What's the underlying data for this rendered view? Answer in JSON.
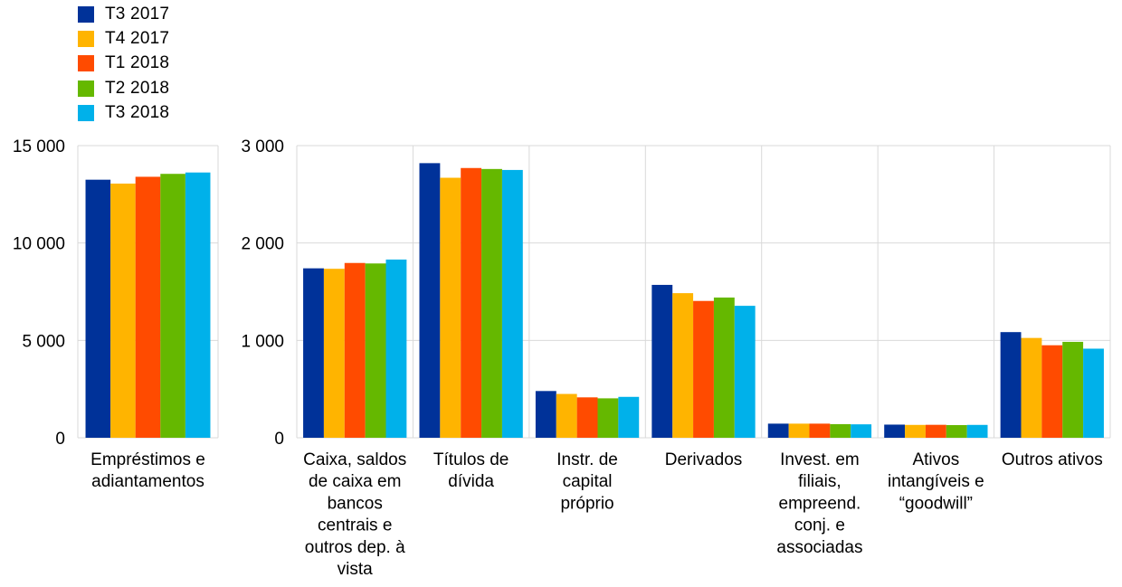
{
  "chart_data": {
    "type": "bar",
    "series": [
      {
        "name": "T3 2017",
        "color": "#003299"
      },
      {
        "name": "T4 2017",
        "color": "#FFB400"
      },
      {
        "name": "T1 2018",
        "color": "#FF4B00"
      },
      {
        "name": "T2 2018",
        "color": "#65B800"
      },
      {
        "name": "T3 2018",
        "color": "#00B1EA"
      }
    ],
    "legend_position": "top-left",
    "grid": true,
    "panels": [
      {
        "ylim": [
          0,
          15000
        ],
        "ticks": [
          0,
          5000,
          10000,
          15000
        ],
        "tick_labels": [
          "0",
          "5 000",
          "10 000",
          "15 000"
        ],
        "categories": [
          {
            "label": [
              "Empréstimos e",
              "adiantamentos"
            ],
            "values": [
              13250,
              13050,
              13400,
              13550,
              13620
            ]
          }
        ]
      },
      {
        "ylim": [
          0,
          3000
        ],
        "ticks": [
          0,
          1000,
          2000,
          3000
        ],
        "tick_labels": [
          "0",
          "1 000",
          "2 000",
          "3 000"
        ],
        "categories": [
          {
            "label": [
              "Caixa, saldos",
              "de caixa em",
              "bancos",
              "centrais e",
              "outros dep. à",
              "vista"
            ],
            "values": [
              1740,
              1735,
              1795,
              1790,
              1830
            ]
          },
          {
            "label": [
              "Títulos de",
              "dívida"
            ],
            "values": [
              2820,
              2670,
              2770,
              2760,
              2750
            ]
          },
          {
            "label": [
              "Instr. de",
              "capital",
              "próprio"
            ],
            "values": [
              480,
              450,
              415,
              405,
              420
            ]
          },
          {
            "label": [
              "Derivados"
            ],
            "values": [
              1570,
              1485,
              1405,
              1440,
              1355
            ]
          },
          {
            "label": [
              "Invest. em",
              "filiais,",
              "empreend.",
              "conj. e",
              "associadas"
            ],
            "values": [
              145,
              145,
              145,
              140,
              138
            ]
          },
          {
            "label": [
              "Ativos",
              "intangíveis e",
              "“goodwill”"
            ],
            "values": [
              135,
              132,
              133,
              130,
              132
            ]
          },
          {
            "label": [
              "Outros ativos"
            ],
            "values": [
              1085,
              1025,
              950,
              985,
              915
            ]
          }
        ]
      }
    ]
  }
}
